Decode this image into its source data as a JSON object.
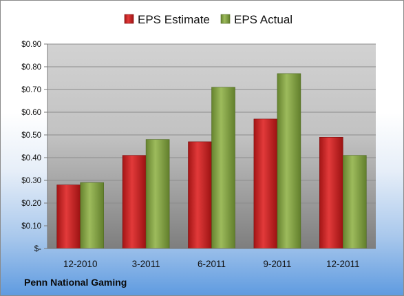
{
  "chart_data": {
    "type": "bar",
    "title": "",
    "xlabel": "",
    "ylabel": "",
    "categories": [
      "12-2010",
      "3-2011",
      "6-2011",
      "9-2011",
      "12-2011"
    ],
    "series": [
      {
        "name": "EPS Estimate",
        "values": [
          0.28,
          0.41,
          0.47,
          0.57,
          0.49
        ],
        "color": "#d42a2a"
      },
      {
        "name": "EPS Actual",
        "values": [
          0.29,
          0.48,
          0.71,
          0.77,
          0.41
        ],
        "color": "#8fae4f"
      }
    ],
    "ylim": [
      0,
      0.9
    ],
    "y_ticks": [
      0,
      0.1,
      0.2,
      0.3,
      0.4,
      0.5,
      0.6,
      0.7,
      0.8,
      0.9
    ],
    "y_tick_labels": [
      "$-",
      "$0.10",
      "$0.20",
      "$0.30",
      "$0.40",
      "$0.50",
      "$0.60",
      "$0.70",
      "$0.80",
      "$0.90"
    ],
    "grid": true,
    "legend_position": "top-center"
  },
  "footer": {
    "company": "Penn National Gaming"
  }
}
